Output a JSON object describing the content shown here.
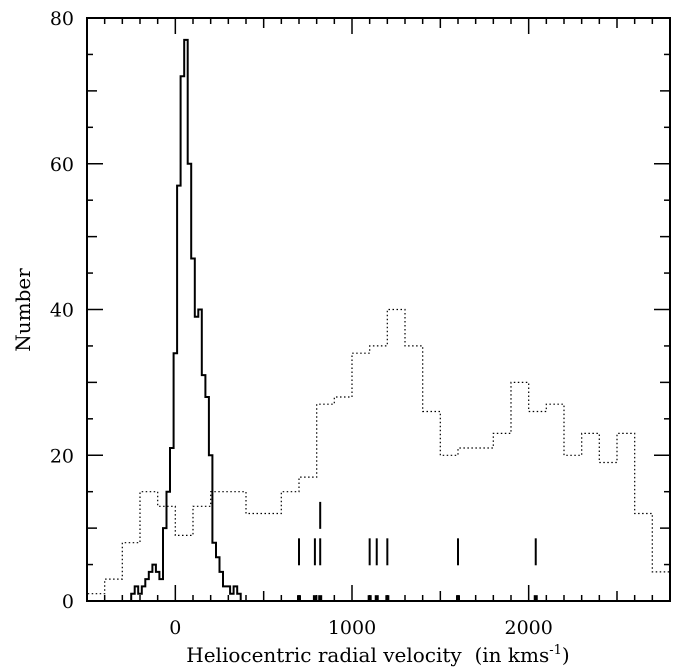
{
  "chart_data": {
    "type": "histogram",
    "xlabel": "Heliocentric radial velocity  (in kms",
    "xlabel_sup": "-1",
    "xlabel_tail": ")",
    "ylabel": "Number",
    "xlim": [
      -500,
      2800
    ],
    "ylim": [
      0,
      80
    ],
    "xticks": [
      0,
      1000,
      2000
    ],
    "yticks": [
      0,
      20,
      40,
      60,
      80
    ],
    "minor_xtick_step": 100,
    "minor_ytick_step": 5,
    "grid": false,
    "series": [
      {
        "style": "solid",
        "bin_width": 20,
        "bins": [
          [
            -250,
            -230,
            1
          ],
          [
            -230,
            -210,
            2
          ],
          [
            -210,
            -190,
            1
          ],
          [
            -190,
            -170,
            2
          ],
          [
            -170,
            -150,
            3
          ],
          [
            -150,
            -130,
            4
          ],
          [
            -130,
            -110,
            5
          ],
          [
            -110,
            -90,
            4
          ],
          [
            -90,
            -70,
            3
          ],
          [
            -70,
            -50,
            10
          ],
          [
            -50,
            -30,
            15
          ],
          [
            -30,
            -10,
            21
          ],
          [
            -10,
            10,
            34
          ],
          [
            10,
            30,
            57
          ],
          [
            30,
            50,
            72
          ],
          [
            50,
            70,
            77
          ],
          [
            70,
            90,
            60
          ],
          [
            90,
            110,
            47
          ],
          [
            110,
            130,
            39
          ],
          [
            130,
            150,
            40
          ],
          [
            150,
            170,
            31
          ],
          [
            170,
            190,
            28
          ],
          [
            190,
            210,
            20
          ],
          [
            210,
            230,
            8
          ],
          [
            230,
            250,
            6
          ],
          [
            250,
            270,
            4
          ],
          [
            270,
            290,
            2
          ],
          [
            290,
            310,
            2
          ],
          [
            310,
            330,
            1
          ],
          [
            330,
            350,
            2
          ],
          [
            350,
            370,
            1
          ],
          [
            370,
            390,
            0
          ]
        ]
      },
      {
        "style": "dotted",
        "bin_width": 100,
        "bins": [
          [
            -500,
            -400,
            1
          ],
          [
            -400,
            -300,
            3
          ],
          [
            -300,
            -200,
            8
          ],
          [
            -200,
            -100,
            15
          ],
          [
            -100,
            0,
            13
          ],
          [
            0,
            100,
            9
          ],
          [
            100,
            200,
            13
          ],
          [
            200,
            300,
            15
          ],
          [
            300,
            400,
            15
          ],
          [
            400,
            500,
            12
          ],
          [
            500,
            600,
            12
          ],
          [
            600,
            700,
            15
          ],
          [
            700,
            800,
            17
          ],
          [
            800,
            900,
            27
          ],
          [
            900,
            1000,
            28
          ],
          [
            1000,
            1100,
            34
          ],
          [
            1100,
            1200,
            35
          ],
          [
            1200,
            1300,
            40
          ],
          [
            1300,
            1400,
            35
          ],
          [
            1400,
            1500,
            26
          ],
          [
            1500,
            1600,
            20
          ],
          [
            1600,
            1700,
            21
          ],
          [
            1700,
            1800,
            21
          ],
          [
            1800,
            1900,
            23
          ],
          [
            1900,
            2000,
            30
          ],
          [
            2000,
            2100,
            26
          ],
          [
            2100,
            2200,
            27
          ],
          [
            2200,
            2300,
            20
          ],
          [
            2300,
            2400,
            23
          ],
          [
            2400,
            2500,
            19
          ],
          [
            2500,
            2600,
            23
          ],
          [
            2600,
            2700,
            12
          ],
          [
            2700,
            2800,
            4
          ]
        ]
      }
    ],
    "annotations": {
      "tall_markers": [
        820
      ],
      "mid_markers": [
        700,
        790,
        820,
        1100,
        1140,
        1200,
        1600,
        2040
      ],
      "baseline_markers": [
        700,
        790,
        820,
        1100,
        1140,
        1200,
        1600,
        2040
      ]
    }
  }
}
